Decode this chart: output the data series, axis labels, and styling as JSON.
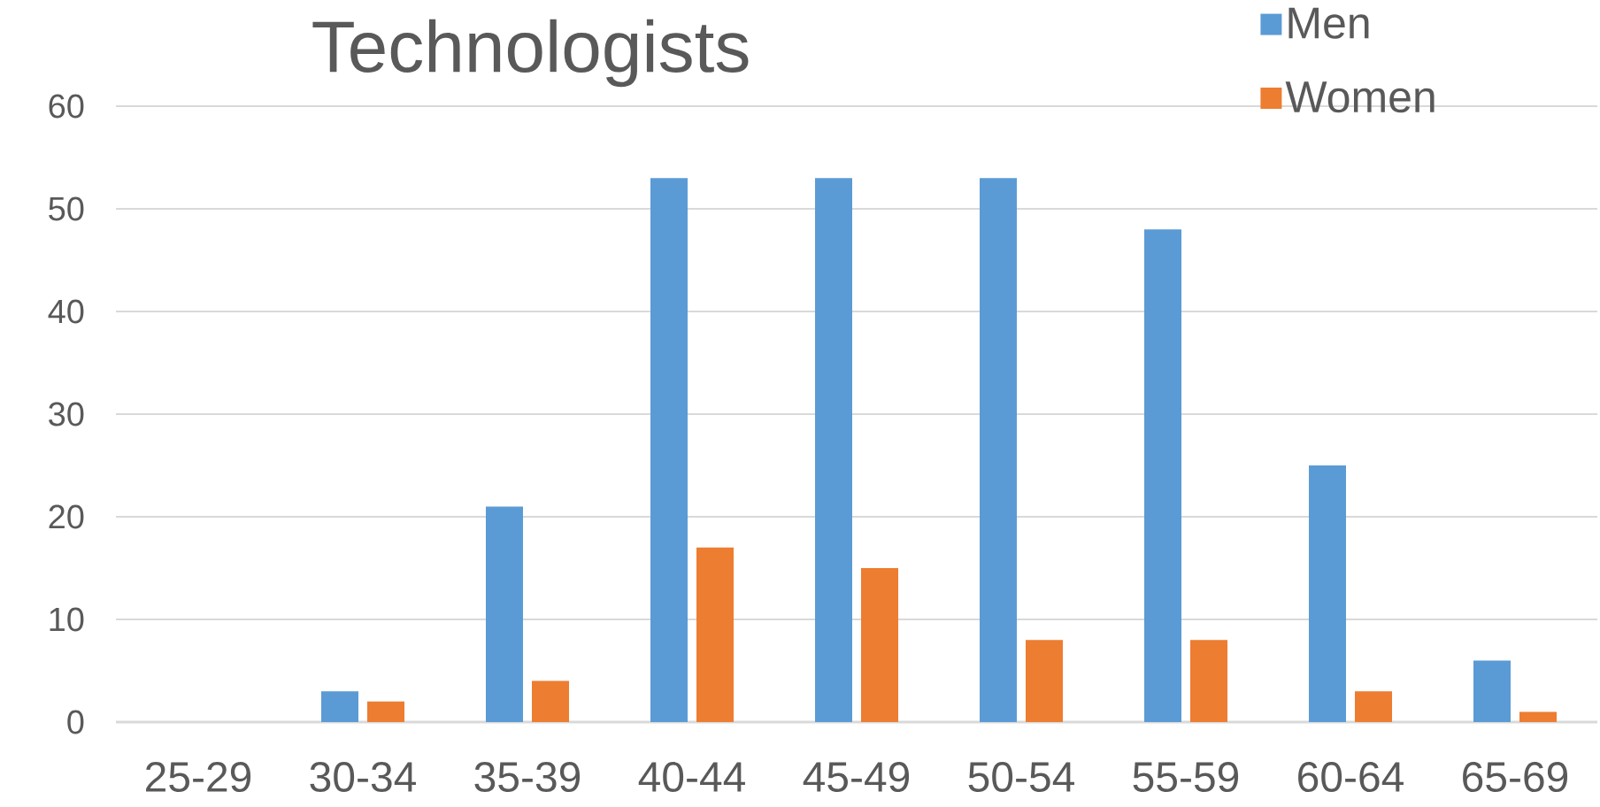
{
  "chart_data": {
    "type": "bar",
    "title": "Technologists",
    "categories": [
      "25-29",
      "30-34",
      "35-39",
      "40-44",
      "45-49",
      "50-54",
      "55-59",
      "60-64",
      "65-69"
    ],
    "series": [
      {
        "name": "Men",
        "color": "#5b9bd5",
        "values": [
          0,
          3,
          21,
          53,
          53,
          53,
          48,
          25,
          6
        ]
      },
      {
        "name": "Women",
        "color": "#ed7d31",
        "values": [
          0,
          2,
          4,
          17,
          15,
          8,
          8,
          3,
          1
        ]
      }
    ],
    "ylim": [
      0,
      60
    ],
    "yticks": [
      0,
      10,
      20,
      30,
      40,
      50,
      60
    ],
    "grid": "y",
    "legend": "top right"
  }
}
